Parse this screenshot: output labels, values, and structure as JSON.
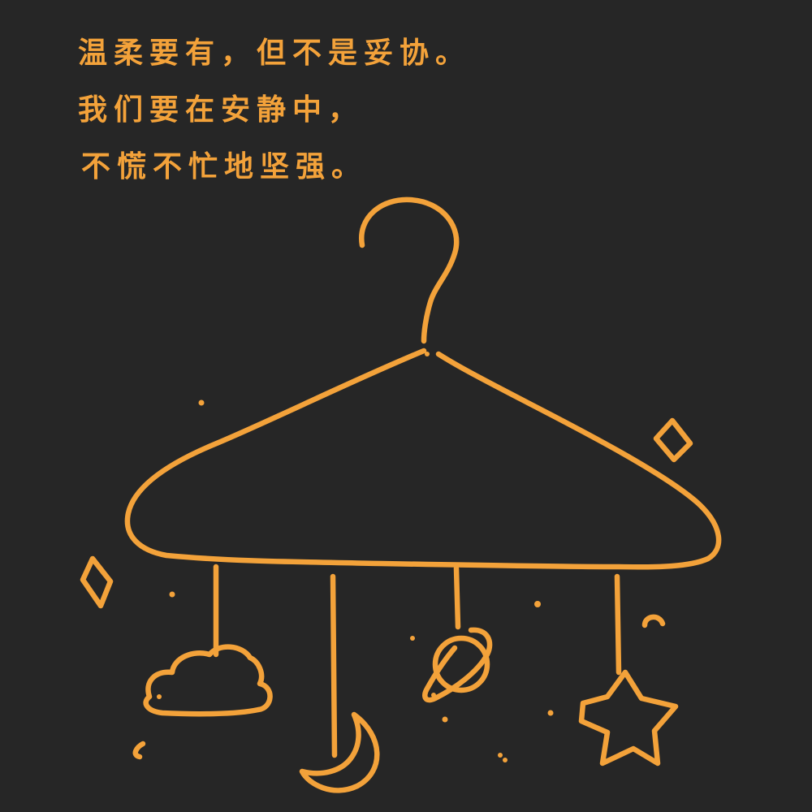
{
  "colors": {
    "background": "#262626",
    "accent": "#F3A23A"
  },
  "quote": {
    "lines": [
      "温柔要有，但不是妥协。",
      "我们要在安静中，",
      "不慌不忙地坚强。"
    ]
  },
  "illustration": {
    "subject": "hanger-mobile",
    "hanging_items": [
      "cloud-icon",
      "moon-icon",
      "planet-icon",
      "star-icon"
    ],
    "decorations": [
      "sparkle-icon",
      "sparkle-icon",
      "dot-icon"
    ]
  }
}
